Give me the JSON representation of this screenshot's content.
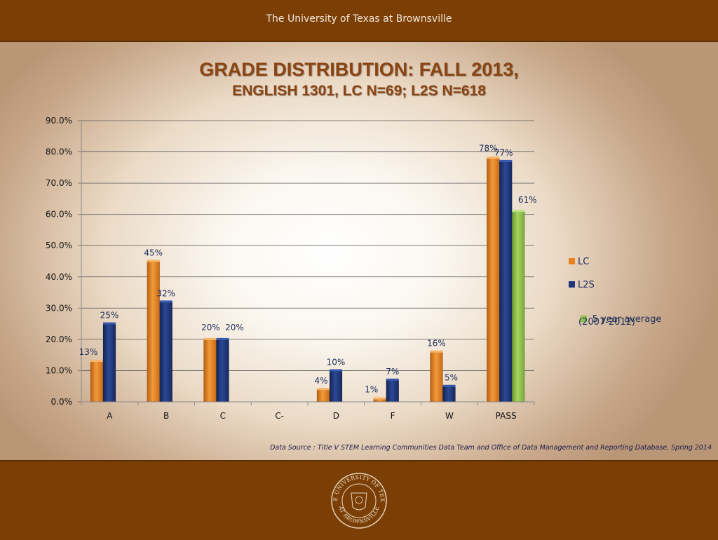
{
  "header": {
    "institution": "The University of Texas at Brownsville"
  },
  "slide": {
    "title_line1": "GRADE DISTRIBUTION: FALL 2013,",
    "title_line2": "ENGLISH 1301, LC N=69; L2S N=618",
    "source": "Data Source : Title V STEM Learning Communities Data Team and  Office of Data Management and Reporting Database, Spring 2014"
  },
  "seal": {
    "text_top": "THE UNIVERSITY OF TEXAS",
    "text_bottom": "AT BROWNSVILLE"
  },
  "chart_data": {
    "type": "bar",
    "categories": [
      "A",
      "B",
      "C",
      "C-",
      "D",
      "F",
      "W",
      "PASS"
    ],
    "series": [
      {
        "name": "LC",
        "color": "#e8821e",
        "values": [
          13,
          45,
          20,
          null,
          4,
          1,
          16,
          78
        ],
        "labels": [
          "13%",
          "45%",
          "20%",
          "",
          "4%",
          "1%",
          "16%",
          "78%"
        ]
      },
      {
        "name": "L2S",
        "color": "#1f3579",
        "values": [
          25,
          32,
          20,
          null,
          10,
          7,
          5,
          77
        ],
        "labels": [
          "25%",
          "32%",
          "20%",
          "",
          "10%",
          "7%",
          "5%",
          "77%"
        ]
      },
      {
        "name": " 5 year average (2007-2012)",
        "color": "#8cc04a",
        "values": [
          null,
          null,
          null,
          null,
          null,
          null,
          null,
          61
        ],
        "labels": [
          "",
          "",
          "",
          "",
          "",
          "",
          "",
          "61%"
        ]
      }
    ],
    "yticks": [
      "0.0%",
      "10.0%",
      "20.0%",
      "30.0%",
      "40.0%",
      "50.0%",
      "60.0%",
      "70.0%",
      "80.0%",
      "90.0%"
    ],
    "ylim": [
      0,
      90
    ],
    "grid": true,
    "legend_position": "right",
    "legend": [
      "LC",
      "L2S",
      " 5 year average",
      "(2007-2012)"
    ]
  }
}
